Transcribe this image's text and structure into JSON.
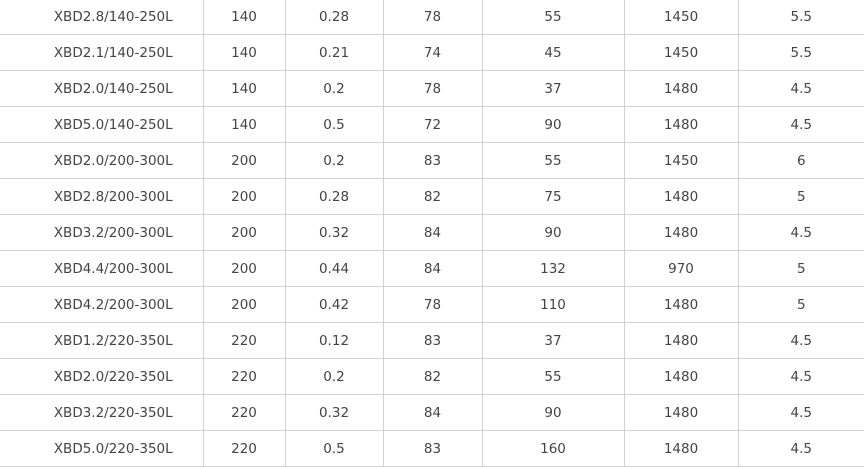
{
  "table": {
    "rows": [
      [
        "XBD2.8/140-250L",
        "140",
        "0.28",
        "78",
        "55",
        "1450",
        "5.5"
      ],
      [
        "XBD2.1/140-250L",
        "140",
        "0.21",
        "74",
        "45",
        "1450",
        "5.5"
      ],
      [
        "XBD2.0/140-250L",
        "140",
        "0.2",
        "78",
        "37",
        "1480",
        "4.5"
      ],
      [
        "XBD5.0/140-250L",
        "140",
        "0.5",
        "72",
        "90",
        "1480",
        "4.5"
      ],
      [
        "XBD2.0/200-300L",
        "200",
        "0.2",
        "83",
        "55",
        "1450",
        "6"
      ],
      [
        "XBD2.8/200-300L",
        "200",
        "0.28",
        "82",
        "75",
        "1480",
        "5"
      ],
      [
        "XBD3.2/200-300L",
        "200",
        "0.32",
        "84",
        "90",
        "1480",
        "4.5"
      ],
      [
        "XBD4.4/200-300L",
        "200",
        "0.44",
        "84",
        "132",
        "970",
        "5"
      ],
      [
        "XBD4.2/200-300L",
        "200",
        "0.42",
        "78",
        "110",
        "1480",
        "5"
      ],
      [
        "XBD1.2/220-350L",
        "220",
        "0.12",
        "83",
        "37",
        "1480",
        "4.5"
      ],
      [
        "XBD2.0/220-350L",
        "220",
        "0.2",
        "82",
        "55",
        "1480",
        "4.5"
      ],
      [
        "XBD3.2/220-350L",
        "220",
        "0.32",
        "84",
        "90",
        "1480",
        "4.5"
      ],
      [
        "XBD5.0/220-350L",
        "220",
        "0.5",
        "83",
        "160",
        "1480",
        "4.5"
      ]
    ]
  }
}
